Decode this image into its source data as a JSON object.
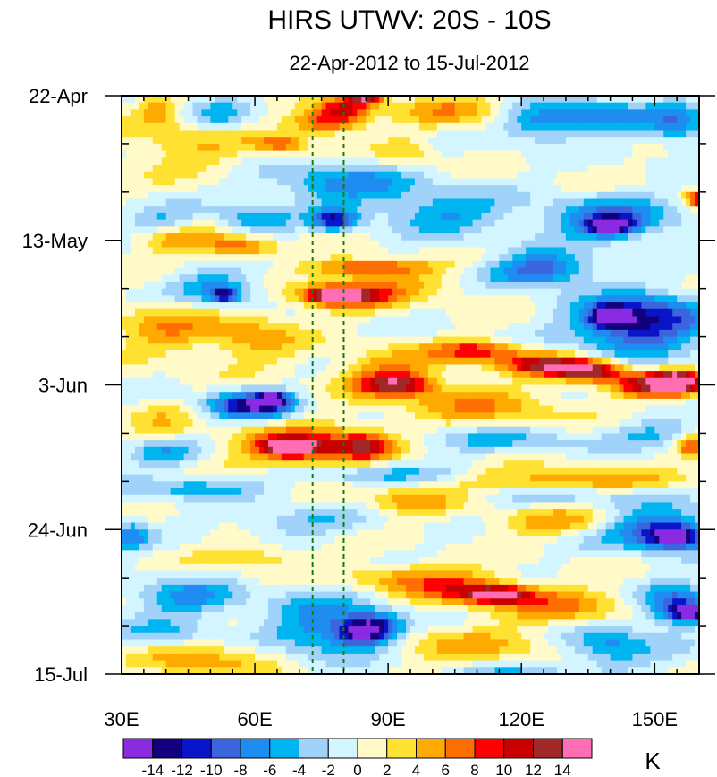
{
  "chart_data": {
    "type": "heatmap",
    "title": "HIRS UTWV: 20S - 10S",
    "subtitle": "22-Apr-2012 to 15-Jul-2012",
    "x_axis": {
      "range": [
        30,
        160
      ],
      "ticks": [
        30,
        60,
        90,
        120,
        150
      ],
      "tick_labels": [
        "30E",
        "60E",
        "90E",
        "120E",
        "150E"
      ],
      "minor_step": 5
    },
    "y_axis": {
      "range_days": [
        0,
        84
      ],
      "reversed": true,
      "ticks_days": [
        0,
        21,
        42,
        63,
        84
      ],
      "tick_labels": [
        "22-Apr",
        "13-May",
        "3-Jun",
        "24-Jun",
        "15-Jul"
      ],
      "minor_step_days": 7
    },
    "reference_lines_lon": [
      73,
      80
    ],
    "colorbar": {
      "unit": "K",
      "levels": [
        -14,
        -12,
        -10,
        -8,
        -6,
        -4,
        -2,
        0,
        2,
        4,
        6,
        8,
        10,
        12,
        14
      ],
      "labels": [
        "-14",
        "-12",
        "-10",
        "-8",
        "-6",
        "-4",
        "-2",
        "0",
        "2",
        "4",
        "6",
        "8",
        "10",
        "12",
        "14"
      ],
      "colors": [
        "#8a2be2",
        "#12007e",
        "#0a14c8",
        "#3c64dc",
        "#1e8cf0",
        "#00b4f0",
        "#a0d2fa",
        "#d2f5ff",
        "#fffac8",
        "#ffe132",
        "#ffaa00",
        "#ff6e00",
        "#ff0000",
        "#c80000",
        "#a02828",
        "#ff6eb4"
      ]
    },
    "features": [
      {
        "lon": 80,
        "day": 2,
        "value": 10,
        "rlon": 6,
        "rday": 1.6
      },
      {
        "lon": 85,
        "day": 0.5,
        "value": 12,
        "rlon": 4,
        "rday": 0.8
      },
      {
        "lon": 76,
        "day": 4,
        "value": 9,
        "rlon": 8,
        "rday": 1.5
      },
      {
        "lon": 66,
        "day": 7,
        "value": 7,
        "rlon": 6,
        "rday": 1.2
      },
      {
        "lon": 94,
        "day": 8,
        "value": 4,
        "rlon": 6,
        "rday": 2
      },
      {
        "lon": 104,
        "day": 2,
        "value": 5,
        "rlon": 12,
        "rday": 2.5
      },
      {
        "lon": 45,
        "day": 7,
        "value": 4,
        "rlon": 15,
        "rday": 4
      },
      {
        "lon": 38,
        "day": 2,
        "value": 5,
        "rlon": 4,
        "rday": 2
      },
      {
        "lon": 160,
        "day": 15,
        "value": 10,
        "rlon": 3,
        "rday": 1
      },
      {
        "lon": 155,
        "day": 4,
        "value": -7,
        "rlon": 8,
        "rday": 3
      },
      {
        "lon": 137,
        "day": 3,
        "value": -7,
        "rlon": 10,
        "rday": 2.5
      },
      {
        "lon": 124,
        "day": 4,
        "value": -7,
        "rlon": 8,
        "rday": 2.5
      },
      {
        "lon": 52,
        "day": 3,
        "value": -5,
        "rlon": 7,
        "rday": 2.5
      },
      {
        "lon": 80,
        "day": 13,
        "value": -7,
        "rlon": 16,
        "rday": 3
      },
      {
        "lon": 78,
        "day": 18,
        "value": -11,
        "rlon": 5,
        "rday": 1.5
      },
      {
        "lon": 60,
        "day": 18,
        "value": -6,
        "rlon": 8,
        "rday": 2
      },
      {
        "lon": 103,
        "day": 17,
        "value": -6,
        "rlon": 14,
        "rday": 3
      },
      {
        "lon": 140,
        "day": 18,
        "value": -9,
        "rlon": 14,
        "rday": 3
      },
      {
        "lon": 140,
        "day": 19,
        "value": -12,
        "rlon": 5,
        "rday": 1.2
      },
      {
        "lon": 42,
        "day": 21,
        "value": 5,
        "rlon": 10,
        "rday": 2
      },
      {
        "lon": 57,
        "day": 22,
        "value": 7,
        "rlon": 8,
        "rday": 1.5
      },
      {
        "lon": 38,
        "day": 18,
        "value": -4,
        "rlon": 8,
        "rday": 2
      },
      {
        "lon": 85,
        "day": 25,
        "value": 9,
        "rlon": 12,
        "rday": 1.2
      },
      {
        "lon": 81,
        "day": 29,
        "value": 10,
        "rlon": 11,
        "rday": 2
      },
      {
        "lon": 78,
        "day": 29,
        "value": 12,
        "rlon": 6,
        "rday": 1
      },
      {
        "lon": 98,
        "day": 27,
        "value": 4,
        "rlon": 18,
        "rday": 2.5
      },
      {
        "lon": 52,
        "day": 28,
        "value": -7,
        "rlon": 10,
        "rday": 2.5
      },
      {
        "lon": 53,
        "day": 29,
        "value": -10,
        "rlon": 3,
        "rday": 1
      },
      {
        "lon": 118,
        "day": 26,
        "value": -4,
        "rlon": 18,
        "rday": 2
      },
      {
        "lon": 148,
        "day": 32,
        "value": -8,
        "rlon": 14,
        "rday": 3.5
      },
      {
        "lon": 140,
        "day": 31.5,
        "value": -12,
        "rlon": 3,
        "rday": 1
      },
      {
        "lon": 125,
        "day": 25,
        "value": -7,
        "rlon": 10,
        "rday": 2.5
      },
      {
        "lon": 40,
        "day": 34,
        "value": 5,
        "rlon": 12,
        "rday": 4
      },
      {
        "lon": 60,
        "day": 35,
        "value": 5,
        "rlon": 10,
        "rday": 4
      },
      {
        "lon": 90,
        "day": 40,
        "value": 6,
        "rlon": 12,
        "rday": 3
      },
      {
        "lon": 92,
        "day": 42,
        "value": 10,
        "rlon": 8,
        "rday": 1.5
      },
      {
        "lon": 110,
        "day": 37,
        "value": 9,
        "rlon": 10,
        "rday": 1.5
      },
      {
        "lon": 125,
        "day": 39,
        "value": 11,
        "rlon": 10,
        "rday": 1.5
      },
      {
        "lon": 135,
        "day": 40,
        "value": 13,
        "rlon": 8,
        "rday": 1.5
      },
      {
        "lon": 150,
        "day": 42,
        "value": 12,
        "rlon": 10,
        "rday": 1.8
      },
      {
        "lon": 155,
        "day": 41.5,
        "value": 13,
        "rlon": 5,
        "rday": 1.5
      },
      {
        "lon": 145,
        "day": 34,
        "value": -7,
        "rlon": 14,
        "rday": 4
      },
      {
        "lon": 140,
        "day": 32.5,
        "value": -10,
        "rlon": 4,
        "rday": 1
      },
      {
        "lon": 110,
        "day": 45,
        "value": 5,
        "rlon": 20,
        "rday": 3
      },
      {
        "lon": 62,
        "day": 45,
        "value": -10,
        "rlon": 8,
        "rday": 2
      },
      {
        "lon": 55,
        "day": 45,
        "value": -6,
        "rlon": 8,
        "rday": 2
      },
      {
        "lon": 64,
        "day": 44,
        "value": -12,
        "rlon": 3,
        "rday": 0.8
      },
      {
        "lon": 40,
        "day": 48,
        "value": 3,
        "rlon": 8,
        "rday": 3
      },
      {
        "lon": 72,
        "day": 51,
        "value": 10,
        "rlon": 15,
        "rday": 3
      },
      {
        "lon": 68,
        "day": 51,
        "value": 13,
        "rlon": 6,
        "rday": 1.2
      },
      {
        "lon": 67,
        "day": 51.5,
        "value": 15,
        "rlon": 2,
        "rday": 0.6
      },
      {
        "lon": 85,
        "day": 51,
        "value": 8,
        "rlon": 6,
        "rday": 2
      },
      {
        "lon": 40,
        "day": 52,
        "value": -6,
        "rlon": 8,
        "rday": 2
      },
      {
        "lon": 115,
        "day": 50,
        "value": -4,
        "rlon": 20,
        "rday": 2
      },
      {
        "lon": 158,
        "day": 51,
        "value": 9,
        "rlon": 3,
        "rday": 1.5
      },
      {
        "lon": 150,
        "day": 49,
        "value": -4,
        "rlon": 10,
        "rday": 2
      },
      {
        "lon": 45,
        "day": 57,
        "value": -5,
        "rlon": 15,
        "rday": 1.5
      },
      {
        "lon": 85,
        "day": 55,
        "value": -5,
        "rlon": 20,
        "rday": 1.5
      },
      {
        "lon": 130,
        "day": 56,
        "value": 6,
        "rlon": 25,
        "rday": 2
      },
      {
        "lon": 130,
        "day": 58,
        "value": -4,
        "rlon": 20,
        "rday": 1.5
      },
      {
        "lon": 95,
        "day": 59,
        "value": 5,
        "rlon": 10,
        "rday": 2
      },
      {
        "lon": 70,
        "day": 62,
        "value": -4,
        "rlon": 15,
        "rday": 2
      },
      {
        "lon": 32,
        "day": 64,
        "value": -7,
        "rlon": 4,
        "rday": 2
      },
      {
        "lon": 150,
        "day": 63,
        "value": -10,
        "rlon": 12,
        "rday": 3
      },
      {
        "lon": 155,
        "day": 64,
        "value": -12,
        "rlon": 6,
        "rday": 1.5
      },
      {
        "lon": 128,
        "day": 62,
        "value": 5,
        "rlon": 15,
        "rday": 2
      },
      {
        "lon": 60,
        "day": 67,
        "value": 4,
        "rlon": 12,
        "rday": 2
      },
      {
        "lon": 95,
        "day": 70,
        "value": 6,
        "rlon": 15,
        "rday": 2
      },
      {
        "lon": 110,
        "day": 72,
        "value": 9,
        "rlon": 12,
        "rday": 2
      },
      {
        "lon": 115,
        "day": 72.5,
        "value": 11,
        "rlon": 6,
        "rday": 1
      },
      {
        "lon": 130,
        "day": 74,
        "value": 6,
        "rlon": 15,
        "rday": 2.5
      },
      {
        "lon": 75,
        "day": 77,
        "value": -7,
        "rlon": 12,
        "rday": 5
      },
      {
        "lon": 84,
        "day": 78,
        "value": -11,
        "rlon": 6,
        "rday": 2
      },
      {
        "lon": 88,
        "day": 77,
        "value": -8,
        "rlon": 6,
        "rday": 2
      },
      {
        "lon": 45,
        "day": 73,
        "value": -6,
        "rlon": 12,
        "rday": 3
      },
      {
        "lon": 40,
        "day": 78,
        "value": -4,
        "rlon": 10,
        "rday": 2
      },
      {
        "lon": 155,
        "day": 74,
        "value": -10,
        "rlon": 8,
        "rday": 3
      },
      {
        "lon": 158,
        "day": 75,
        "value": -12,
        "rlon": 4,
        "rday": 1
      },
      {
        "lon": 140,
        "day": 80,
        "value": -7,
        "rlon": 10,
        "rday": 3
      },
      {
        "lon": 50,
        "day": 82,
        "value": 5,
        "rlon": 15,
        "rday": 2.5
      },
      {
        "lon": 110,
        "day": 80,
        "value": 4,
        "rlon": 20,
        "rday": 3
      },
      {
        "lon": 120,
        "day": 84,
        "value": -4,
        "rlon": 15,
        "rday": 2
      }
    ]
  }
}
